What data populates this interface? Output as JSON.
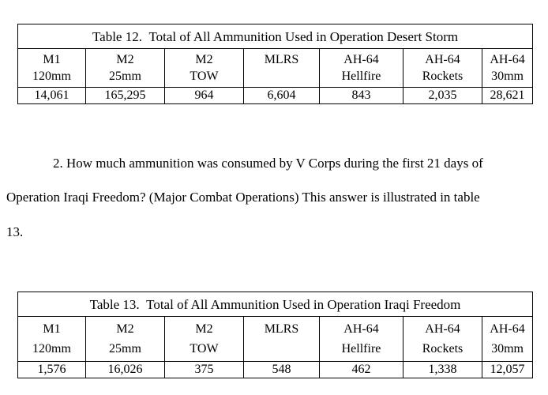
{
  "table12": {
    "caption": "Table 12.  Total of All Ammunition Used in Operation Desert Storm",
    "columns": [
      {
        "line1": "M1",
        "line2": "120mm"
      },
      {
        "line1": "M2",
        "line2": "25mm"
      },
      {
        "line1": "M2",
        "line2": "TOW"
      },
      {
        "line1": "MLRS",
        "line2": ""
      },
      {
        "line1": "AH-64",
        "line2": "Hellfire"
      },
      {
        "line1": "AH-64",
        "line2": "Rockets"
      },
      {
        "line1": "AH-64",
        "line2": "30mm"
      }
    ],
    "values": [
      "14,061",
      "165,295",
      "964",
      "6,604",
      "843",
      "2,035",
      "28,621"
    ]
  },
  "question": {
    "line1": "2. How much ammunition was consumed by V Corps during the first 21 days of",
    "line2": "Operation Iraqi Freedom? (Major Combat Operations) This answer is illustrated in table",
    "line3": "13."
  },
  "table13": {
    "caption": "Table 13.  Total of All Ammunition Used in Operation Iraqi Freedom",
    "columns": [
      {
        "line1": "M1",
        "line2": "120mm"
      },
      {
        "line1": "M2",
        "line2": "25mm"
      },
      {
        "line1": "M2",
        "line2": "TOW"
      },
      {
        "line1": "MLRS",
        "line2": ""
      },
      {
        "line1": "AH-64",
        "line2": "Hellfire"
      },
      {
        "line1": "AH-64",
        "line2": "Rockets"
      },
      {
        "line1": "AH-64",
        "line2": "30mm"
      }
    ],
    "values": [
      "1,576",
      "16,026",
      "375",
      "548",
      "462",
      "1,338",
      "12,057"
    ]
  }
}
